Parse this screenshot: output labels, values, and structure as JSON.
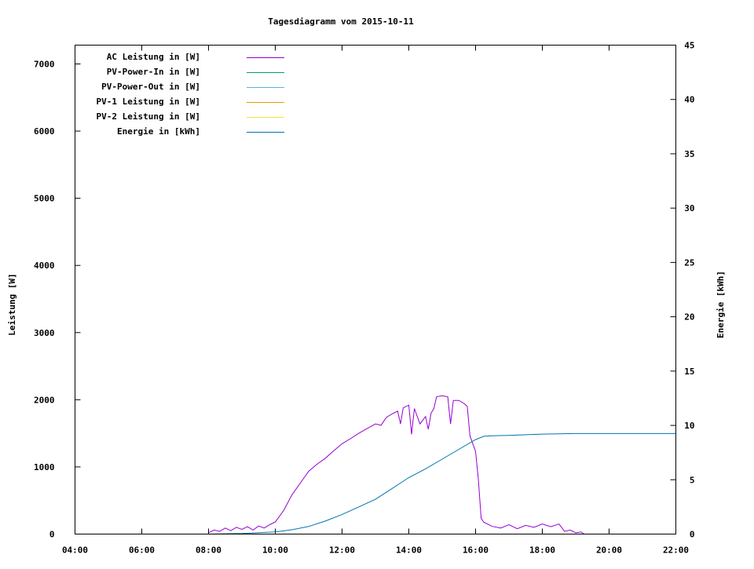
{
  "chart_data": {
    "type": "line",
    "title": "Tagesdiagramm vom 2015-10-11",
    "ylabel": "Leistung [W]",
    "y2label": "Energie [kWh]",
    "xlabel": "",
    "xlim": [
      "04:00",
      "22:00"
    ],
    "ylim": [
      0,
      7280
    ],
    "y2lim": [
      0,
      45
    ],
    "xticks": [
      "04:00",
      "06:00",
      "08:00",
      "10:00",
      "12:00",
      "14:00",
      "16:00",
      "18:00",
      "20:00",
      "22:00"
    ],
    "yticks": [
      "0",
      "1000",
      "2000",
      "3000",
      "4000",
      "5000",
      "6000",
      "7000"
    ],
    "y2ticks": [
      "0",
      "5",
      "10",
      "15",
      "20",
      "25",
      "30",
      "35",
      "40",
      "45"
    ],
    "grid": false,
    "legend_position": "top-left",
    "series": [
      {
        "name": "AC Leistung in [W]",
        "axis": "y",
        "color": "#9400d3",
        "x": [
          "08:00",
          "08:10",
          "08:20",
          "08:30",
          "08:40",
          "08:50",
          "09:00",
          "09:10",
          "09:20",
          "09:30",
          "09:40",
          "09:50",
          "10:00",
          "10:15",
          "10:30",
          "10:45",
          "11:00",
          "11:15",
          "11:30",
          "11:45",
          "12:00",
          "12:15",
          "12:30",
          "12:45",
          "13:00",
          "13:10",
          "13:15",
          "13:20",
          "13:30",
          "13:40",
          "13:45",
          "13:50",
          "14:00",
          "14:05",
          "14:10",
          "14:20",
          "14:30",
          "14:35",
          "14:40",
          "14:45",
          "14:50",
          "15:00",
          "15:10",
          "15:15",
          "15:20",
          "15:30",
          "15:40",
          "15:45",
          "15:50",
          "16:00",
          "16:05",
          "16:10",
          "16:15",
          "16:30",
          "16:45",
          "17:00",
          "17:15",
          "17:30",
          "17:45",
          "18:00",
          "18:15",
          "18:30",
          "18:40",
          "18:50",
          "19:00",
          "19:10",
          "19:15"
        ],
        "y": [
          20,
          60,
          40,
          90,
          50,
          100,
          70,
          110,
          60,
          120,
          90,
          140,
          180,
          350,
          585,
          760,
          935,
          1040,
          1130,
          1240,
          1345,
          1420,
          1500,
          1570,
          1640,
          1620,
          1680,
          1740,
          1790,
          1830,
          1640,
          1880,
          1920,
          1485,
          1870,
          1640,
          1750,
          1560,
          1800,
          1870,
          2045,
          2060,
          2045,
          1640,
          1990,
          1990,
          1940,
          1900,
          1460,
          1230,
          820,
          235,
          175,
          115,
          90,
          140,
          80,
          130,
          100,
          150,
          110,
          150,
          40,
          60,
          20,
          30,
          0
        ]
      },
      {
        "name": "PV-Power-In in [W]",
        "axis": "y",
        "color": "#009e73",
        "x": [],
        "y": []
      },
      {
        "name": "PV-Power-Out in [W]",
        "axis": "y",
        "color": "#56b4e9",
        "x": [],
        "y": []
      },
      {
        "name": "PV-1 Leistung in [W]",
        "axis": "y",
        "color": "#e69f00",
        "x": [],
        "y": []
      },
      {
        "name": "PV-2 Leistung in [W]",
        "axis": "y",
        "color": "#f0e442",
        "x": [],
        "y": []
      },
      {
        "name": "Energie in [kWh]",
        "axis": "y2",
        "color": "#0072b2",
        "x": [
          "08:00",
          "09:00",
          "10:00",
          "10:30",
          "11:00",
          "11:30",
          "12:00",
          "12:30",
          "13:00",
          "13:30",
          "14:00",
          "14:30",
          "15:00",
          "15:30",
          "16:00",
          "16:15",
          "16:30",
          "17:00",
          "18:00",
          "19:00",
          "20:00",
          "22:00"
        ],
        "y": [
          0,
          0.05,
          0.2,
          0.4,
          0.7,
          1.2,
          1.8,
          2.5,
          3.2,
          4.2,
          5.2,
          6.0,
          6.9,
          7.8,
          8.7,
          9.0,
          9.05,
          9.08,
          9.2,
          9.25,
          9.25,
          9.25
        ]
      }
    ]
  }
}
